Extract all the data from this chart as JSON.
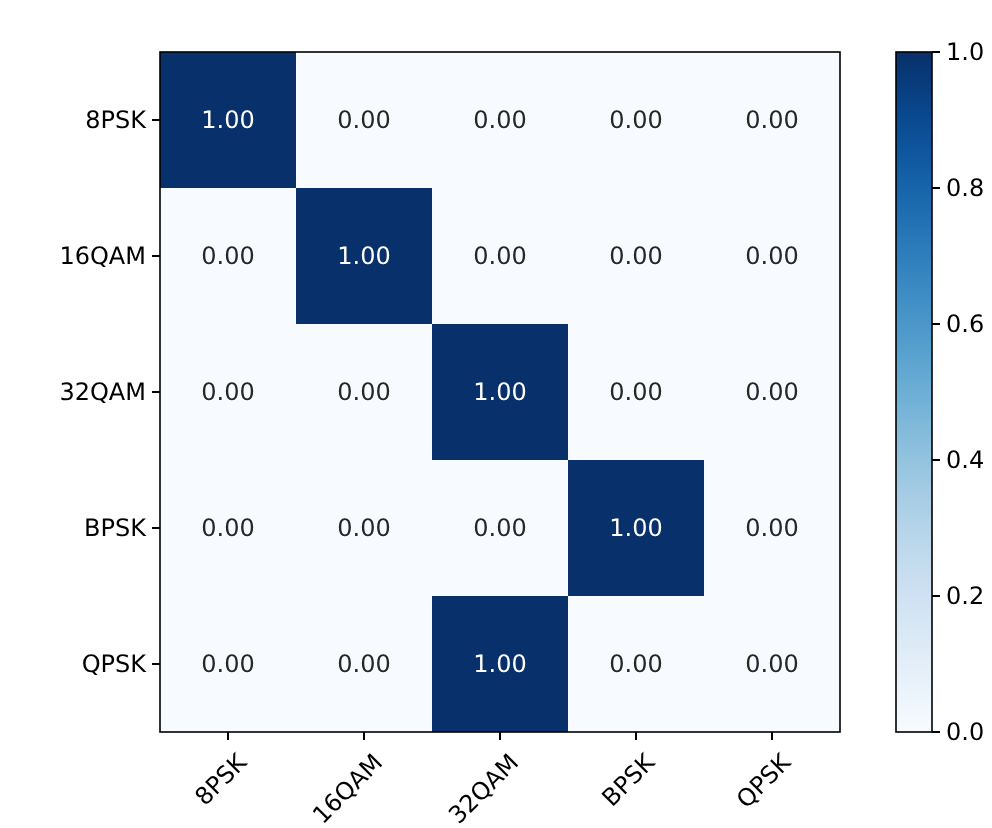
{
  "chart_data": {
    "type": "heatmap",
    "categories": [
      "8PSK",
      "16QAM",
      "32QAM",
      "BPSK",
      "QPSK"
    ],
    "y_categories": [
      "8PSK",
      "16QAM",
      "32QAM",
      "BPSK",
      "QPSK"
    ],
    "cells": [
      [
        1,
        0,
        0,
        0,
        0
      ],
      [
        0,
        1,
        0,
        0,
        0
      ],
      [
        0,
        0,
        1,
        0,
        0
      ],
      [
        0,
        0,
        0,
        1,
        0
      ],
      [
        0,
        0,
        1,
        0,
        0
      ]
    ],
    "cell_labels": [
      [
        "1.00",
        "0.00",
        "0.00",
        "0.00",
        "0.00"
      ],
      [
        "0.00",
        "1.00",
        "0.00",
        "0.00",
        "0.00"
      ],
      [
        "0.00",
        "0.00",
        "1.00",
        "0.00",
        "0.00"
      ],
      [
        "0.00",
        "0.00",
        "0.00",
        "1.00",
        "0.00"
      ],
      [
        "0.00",
        "0.00",
        "1.00",
        "0.00",
        "0.00"
      ]
    ],
    "clim": [
      0,
      1
    ],
    "cticks": [
      {
        "value": 0,
        "label": "0.0"
      },
      {
        "value": 0.2,
        "label": "0.2"
      },
      {
        "value": 0.4,
        "label": "0.4"
      },
      {
        "value": 0.6,
        "label": "0.6"
      },
      {
        "value": 0.8,
        "label": "0.8"
      },
      {
        "value": 1,
        "label": "1.0"
      }
    ]
  }
}
